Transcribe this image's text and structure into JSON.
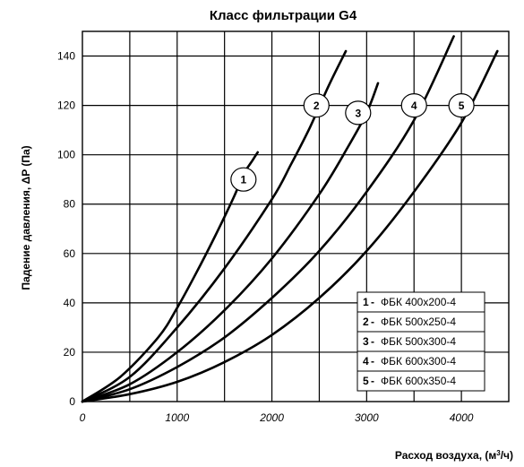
{
  "chart_data": {
    "type": "line",
    "title": "Класс фильтрации G4",
    "xlabel_main": "Расход воздуха, (м",
    "xlabel_sup": "3",
    "xlabel_end": "/ч)",
    "ylabel": "Падение давления, ΔP (Па)",
    "xlim": [
      0,
      4500
    ],
    "ylim": [
      0,
      150
    ],
    "x_ticks": [
      "0",
      "1000",
      "2000",
      "3000",
      "4000"
    ],
    "y_ticks": [
      "0",
      "20",
      "40",
      "60",
      "80",
      "100",
      "120",
      "140"
    ],
    "grid": true,
    "legend_position": "bottom-right",
    "series": [
      {
        "name": "ФБК 400х200-4",
        "label": "1",
        "label_point": [
          1700,
          90
        ],
        "x": [
          0,
          400,
          800,
          1000,
          1200,
          1400,
          1600,
          1700,
          1800,
          1850
        ],
        "y": [
          0,
          10,
          26,
          38,
          52,
          67,
          83,
          92,
          98,
          101
        ]
      },
      {
        "name": "ФБК 500х250-4",
        "label": "2",
        "label_point": [
          2470,
          120
        ],
        "x": [
          0,
          500,
          1000,
          1500,
          2000,
          2200,
          2400,
          2600,
          2780
        ],
        "y": [
          0,
          10,
          30,
          54,
          82,
          96,
          111,
          128,
          142
        ]
      },
      {
        "name": "ФБК 500х300-4",
        "label": "3",
        "label_point": [
          2910,
          117
        ],
        "x": [
          0,
          500,
          1000,
          1500,
          2000,
          2500,
          2800,
          3000,
          3120
        ],
        "y": [
          0,
          7,
          20,
          37,
          58,
          84,
          103,
          117,
          129
        ]
      },
      {
        "name": "ФБК 600х300-4",
        "label": "4",
        "label_point": [
          3500,
          120
        ],
        "x": [
          0,
          500,
          1000,
          1500,
          2000,
          2500,
          3000,
          3500,
          3920
        ],
        "y": [
          0,
          5,
          14,
          26,
          42,
          61,
          85,
          114,
          148
        ]
      },
      {
        "name": "ФБК 600х350-4",
        "label": "5",
        "label_point": [
          4000,
          120
        ],
        "x": [
          0,
          500,
          1000,
          1500,
          2000,
          2500,
          3000,
          3500,
          4000,
          4380
        ],
        "y": [
          0,
          3,
          8,
          16,
          27,
          42,
          61,
          85,
          113,
          142
        ]
      }
    ]
  }
}
